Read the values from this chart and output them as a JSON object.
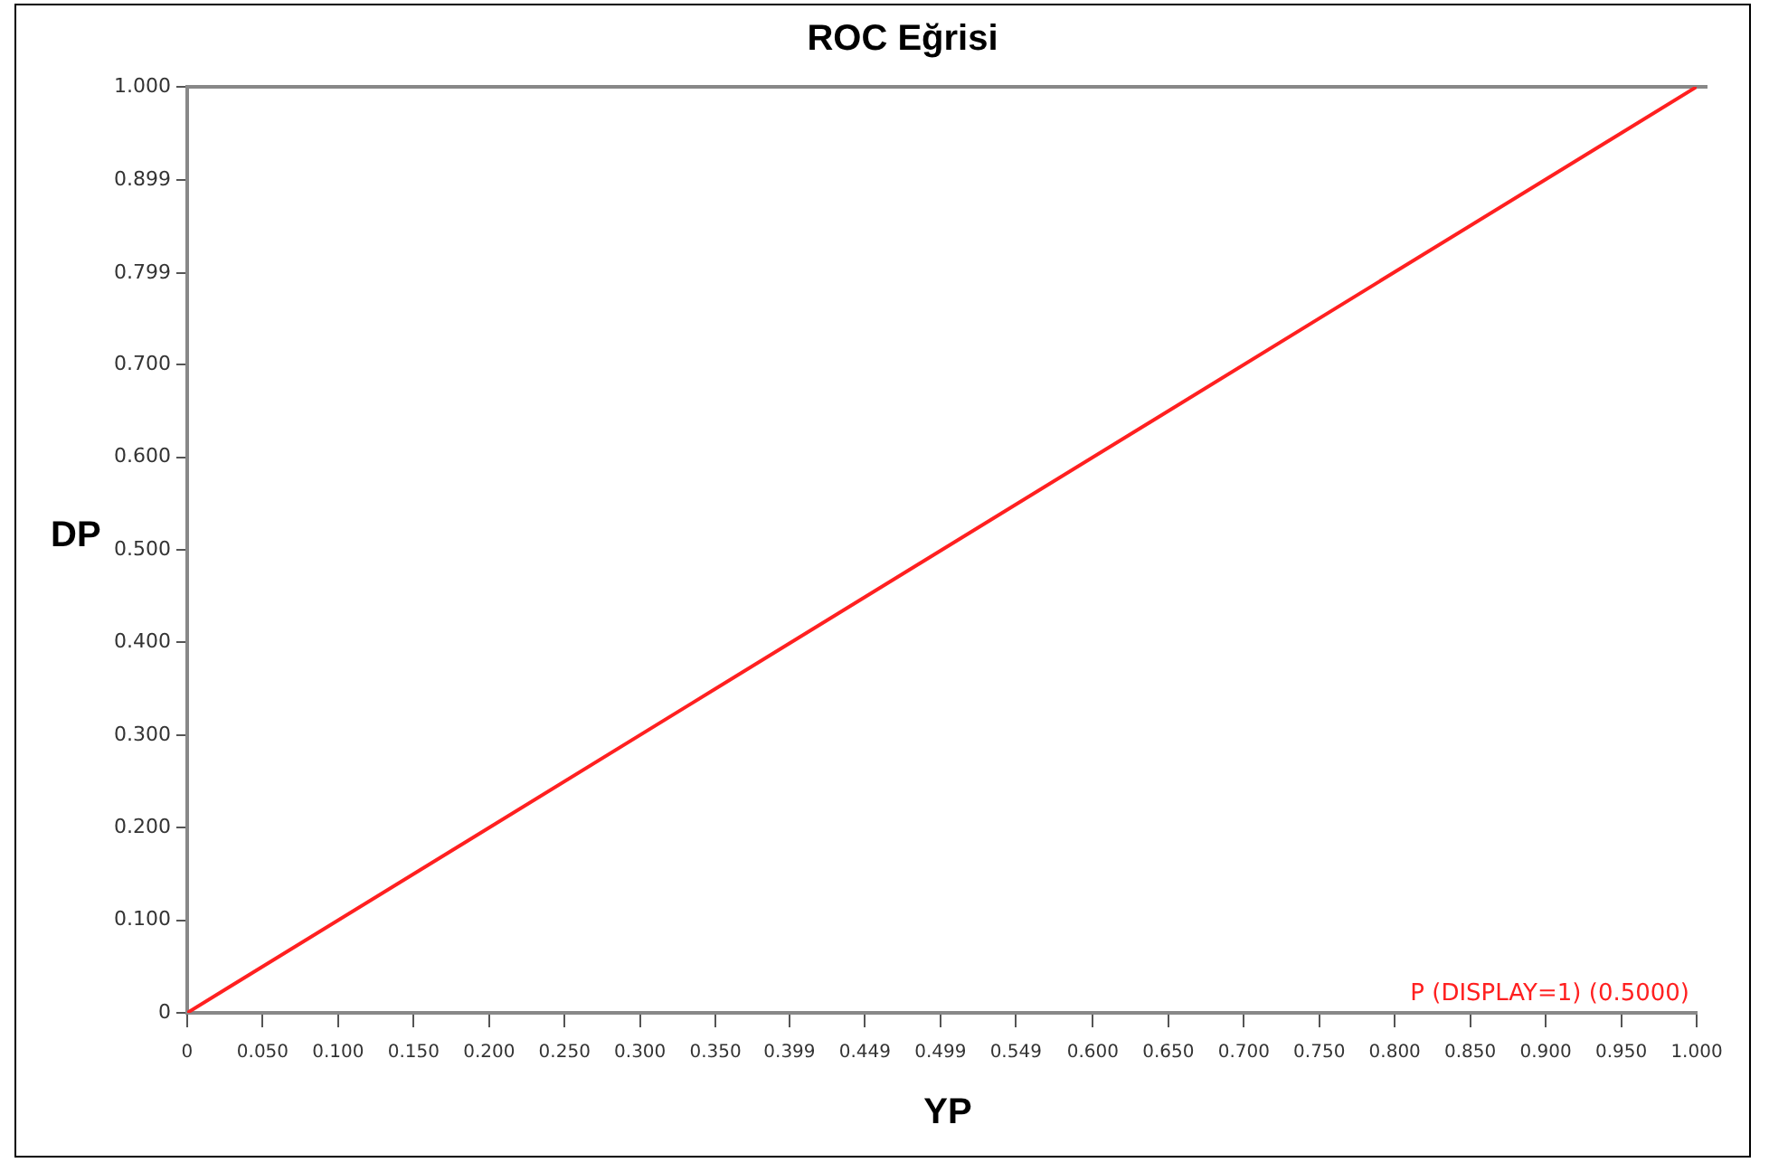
{
  "chart_data": {
    "type": "line",
    "title": "ROC Eğrisi",
    "xlabel": "YP",
    "ylabel": "DP",
    "x": [
      0,
      1
    ],
    "series": [
      {
        "name": "P (DISPLAY=1) (0.5000)",
        "color": "#ff2020",
        "values": [
          0,
          1
        ]
      }
    ],
    "xlim": [
      0,
      1
    ],
    "ylim": [
      0,
      1
    ],
    "xticks": [
      {
        "value": 0,
        "label": "0"
      },
      {
        "value": 0.05,
        "label": "0.050"
      },
      {
        "value": 0.1,
        "label": "0.100"
      },
      {
        "value": 0.15,
        "label": "0.150"
      },
      {
        "value": 0.2,
        "label": "0.200"
      },
      {
        "value": 0.25,
        "label": "0.250"
      },
      {
        "value": 0.3,
        "label": "0.300"
      },
      {
        "value": 0.35,
        "label": "0.350"
      },
      {
        "value": 0.399,
        "label": "0.399"
      },
      {
        "value": 0.449,
        "label": "0.449"
      },
      {
        "value": 0.499,
        "label": "0.499"
      },
      {
        "value": 0.549,
        "label": "0.549"
      },
      {
        "value": 0.6,
        "label": "0.600"
      },
      {
        "value": 0.65,
        "label": "0.650"
      },
      {
        "value": 0.7,
        "label": "0.700"
      },
      {
        "value": 0.75,
        "label": "0.750"
      },
      {
        "value": 0.8,
        "label": "0.800"
      },
      {
        "value": 0.85,
        "label": "0.850"
      },
      {
        "value": 0.9,
        "label": "0.900"
      },
      {
        "value": 0.95,
        "label": "0.950"
      },
      {
        "value": 1,
        "label": "1.000"
      }
    ],
    "yticks": [
      {
        "value": 0,
        "label": "0"
      },
      {
        "value": 0.1,
        "label": "0.100"
      },
      {
        "value": 0.2,
        "label": "0.200"
      },
      {
        "value": 0.3,
        "label": "0.300"
      },
      {
        "value": 0.4,
        "label": "0.400"
      },
      {
        "value": 0.5,
        "label": "0.500"
      },
      {
        "value": 0.6,
        "label": "0.600"
      },
      {
        "value": 0.7,
        "label": "0.700"
      },
      {
        "value": 0.799,
        "label": "0.799"
      },
      {
        "value": 0.899,
        "label": "0.899"
      },
      {
        "value": 1,
        "label": "1.000"
      }
    ],
    "grid": false,
    "legend": false,
    "marker": "none",
    "line_style": "solid"
  }
}
